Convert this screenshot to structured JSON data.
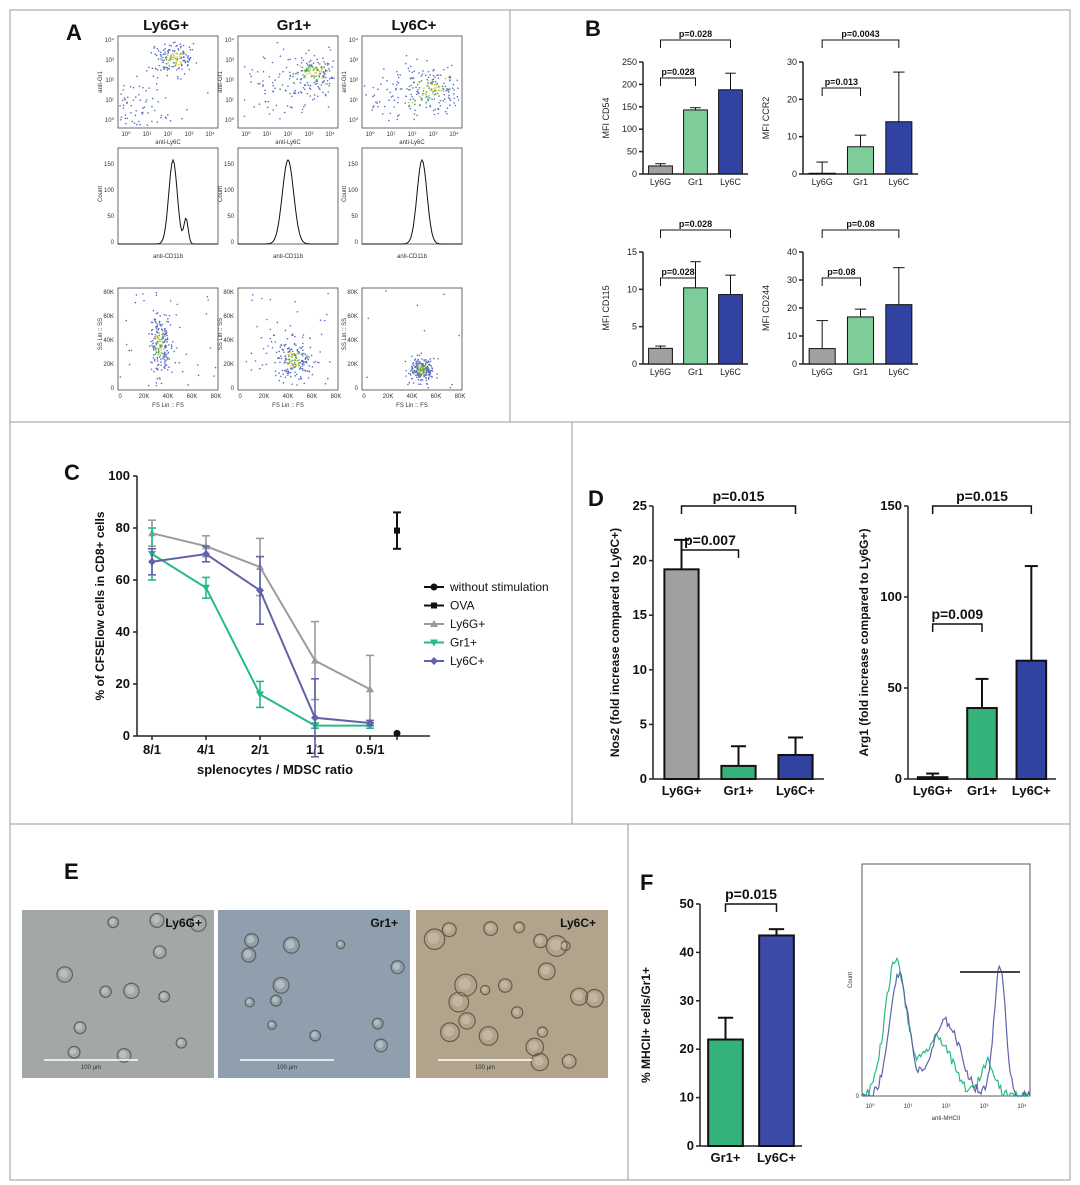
{
  "panels": {
    "A": "A",
    "B": "B",
    "C": "C",
    "D": "D",
    "E": "E",
    "F": "F"
  },
  "colors": {
    "gray": "#a0a0a0",
    "green": "#33b27a",
    "green_light": "#7dcc9a",
    "blue": "#3242a0",
    "blue_dark": "#3d4aa8",
    "ly6g_line": "#9b9b9b",
    "gr1_line": "#27ba84",
    "ly6c_line": "#6163aa"
  },
  "panelA": {
    "col_titles": [
      "Ly6G+",
      "Gr1+",
      "Ly6C+"
    ],
    "row1_xlabel": "anti-Ly6C",
    "row1_ylabel": "anti-Gr1",
    "row1_ticks": [
      "10⁰",
      "10¹",
      "10²",
      "10³",
      "10⁴"
    ],
    "row2_xlabel": "anti-CD11b",
    "row2_ylabel": "Count",
    "row2_yticks": [
      "0",
      "50",
      "100",
      "150"
    ],
    "row3_xlabel": "FS Lin :: FS",
    "row3_ylabel": "SS Lin :: SS",
    "row3_xticks": [
      "0",
      "20K",
      "40K",
      "60K",
      "80K"
    ],
    "row3_yticks": [
      "0",
      "20K",
      "40K",
      "60K",
      "80K"
    ]
  },
  "chart_data": [
    {
      "id": "B-CD54",
      "type": "bar",
      "title": "",
      "categories": [
        "Ly6G",
        "Gr1",
        "Ly6C"
      ],
      "values": [
        18,
        143,
        188
      ],
      "errors": [
        5,
        5,
        37
      ],
      "ylabel": "MFI CD54",
      "ylim": [
        0,
        250
      ],
      "yticks": [
        0,
        50,
        100,
        150,
        200,
        250
      ],
      "comparisons": [
        {
          "from": 0,
          "to": 1,
          "label": "p=0.028"
        },
        {
          "from": 0,
          "to": 2,
          "label": "p=0.028"
        }
      ]
    },
    {
      "id": "B-CCR2",
      "type": "bar",
      "title": "",
      "categories": [
        "Ly6G",
        "Gr1",
        "Ly6C"
      ],
      "values": [
        0.2,
        7.3,
        14
      ],
      "errors": [
        3,
        3.1,
        13.3
      ],
      "ylabel": "MFI CCR2",
      "ylim": [
        0,
        30
      ],
      "yticks": [
        0,
        10,
        20,
        30
      ],
      "comparisons": [
        {
          "from": 0,
          "to": 1,
          "label": "p=0.013"
        },
        {
          "from": 0,
          "to": 2,
          "label": "p=0.0043"
        }
      ]
    },
    {
      "id": "B-CD115",
      "type": "bar",
      "title": "",
      "categories": [
        "Ly6G",
        "Gr1",
        "Ly6C"
      ],
      "values": [
        2.1,
        10.2,
        9.3
      ],
      "errors": [
        0.3,
        3.5,
        2.6
      ],
      "ylabel": "MFI CD115",
      "ylim": [
        0,
        15
      ],
      "yticks": [
        0,
        5,
        10,
        15
      ],
      "comparisons": [
        {
          "from": 0,
          "to": 1,
          "label": "p=0.028"
        },
        {
          "from": 0,
          "to": 2,
          "label": "p=0.028"
        }
      ]
    },
    {
      "id": "B-CD244",
      "type": "bar",
      "title": "",
      "categories": [
        "Ly6G",
        "Gr1",
        "Ly6C"
      ],
      "values": [
        5.5,
        16.8,
        21.2
      ],
      "errors": [
        10,
        2.8,
        13.2
      ],
      "ylabel": "MFI CD244",
      "ylim": [
        0,
        40
      ],
      "yticks": [
        0,
        10,
        20,
        30,
        40
      ],
      "comparisons": [
        {
          "from": 0,
          "to": 1,
          "label": "p=0.08"
        },
        {
          "from": 0,
          "to": 2,
          "label": "p=0.08"
        }
      ]
    },
    {
      "id": "C",
      "type": "line",
      "title": "",
      "categories": [
        "8/1",
        "4/1",
        "2/1",
        "1/1",
        "0.5/1"
      ],
      "xlabel": "splenocytes / MDSC ratio",
      "ylabel": "% of CFSElow cells in CD8+ cells",
      "ylim": [
        0,
        100
      ],
      "yticks": [
        0,
        20,
        40,
        60,
        80,
        100
      ],
      "series": [
        {
          "name": "Ly6G+",
          "values": [
            78,
            73,
            65,
            29,
            18
          ],
          "errors": [
            5,
            4,
            11,
            15,
            13
          ]
        },
        {
          "name": "Gr1+",
          "values": [
            70,
            57,
            16,
            4,
            4
          ],
          "errors": [
            10,
            4,
            5,
            1,
            1
          ]
        },
        {
          "name": "Ly6C+",
          "values": [
            67,
            70,
            56,
            7,
            5
          ],
          "errors": [
            5,
            3,
            13,
            15,
            1
          ]
        }
      ],
      "points": [
        {
          "name": "without stimulation",
          "value": 1,
          "error": 0
        },
        {
          "name": "OVA",
          "value": 79,
          "error": 7
        }
      ],
      "legend": [
        "without stimulation",
        "OVA",
        "Ly6G+",
        "Gr1+",
        "Ly6C+"
      ]
    },
    {
      "id": "D-Nos2",
      "type": "bar",
      "title": "",
      "categories": [
        "Ly6G+",
        "Gr1+",
        "Ly6C+"
      ],
      "values": [
        19.2,
        1.2,
        2.2
      ],
      "errors": [
        2.7,
        1.8,
        1.6
      ],
      "ylabel": "Nos2 (fold increase compared to Ly6C+)",
      "ylim": [
        0,
        25
      ],
      "yticks": [
        0,
        5,
        10,
        15,
        20,
        25
      ],
      "comparisons": [
        {
          "from": 0,
          "to": 1,
          "label": "p=0.007"
        },
        {
          "from": 0,
          "to": 2,
          "label": "p=0.015"
        }
      ]
    },
    {
      "id": "D-Arg1",
      "type": "bar",
      "title": "",
      "categories": [
        "Ly6G+",
        "Gr1+",
        "Ly6C+"
      ],
      "values": [
        1,
        39,
        65
      ],
      "errors": [
        2,
        16,
        52
      ],
      "ylabel": "Arg1 (fold increase compared to Ly6G+)",
      "ylim": [
        0,
        150
      ],
      "yticks": [
        0,
        50,
        100,
        150
      ],
      "comparisons": [
        {
          "from": 0,
          "to": 1,
          "label": "p=0.009"
        },
        {
          "from": 0,
          "to": 2,
          "label": "p=0.015"
        }
      ]
    },
    {
      "id": "F-bar",
      "type": "bar",
      "title": "",
      "categories": [
        "Gr1+",
        "Ly6C+"
      ],
      "values": [
        22,
        43.5
      ],
      "errors": [
        4.5,
        1.3
      ],
      "ylabel": "% MHCII+ cells/Gr1+",
      "ylim": [
        0,
        50
      ],
      "yticks": [
        0,
        10,
        20,
        30,
        40,
        50
      ],
      "comparisons": [
        {
          "from": 0,
          "to": 1,
          "label": "p=0.015"
        }
      ]
    }
  ],
  "panelE": {
    "labels": [
      "Ly6G+",
      "Gr1+",
      "Ly6C+"
    ],
    "scale": "100 µm"
  },
  "panelF_hist": {
    "ylabel": "Count",
    "xlabel": "anti-MHCII",
    "xticks": [
      "10⁰",
      "10¹",
      "10²",
      "10³",
      "10⁴"
    ],
    "ytick0": "0"
  }
}
